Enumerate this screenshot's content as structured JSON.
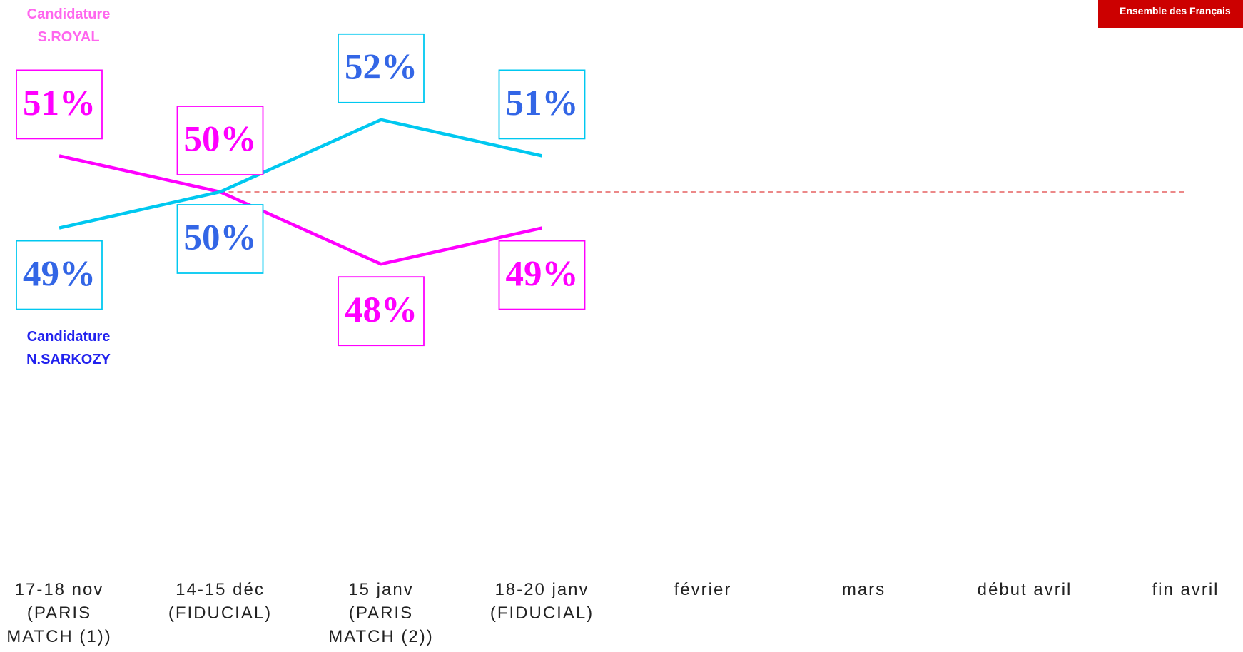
{
  "chart_data": {
    "type": "line",
    "badge": "Ensemble des Français",
    "categories": [
      "17-18 nov (PARIS MATCH (1))",
      "14-15 déc (FIDUCIAL)",
      "15 janv (PARIS MATCH (2))",
      "18-20 janv (FIDUCIAL)",
      "février",
      "mars",
      "début avril",
      "fin avril"
    ],
    "series": [
      {
        "name": "Candidature S.ROYAL",
        "color": "#ff00ff",
        "label_color": "#ff00ff",
        "legend_color": "#ff66ee",
        "values": [
          51,
          50,
          48,
          49,
          null,
          null,
          null,
          null
        ],
        "value_labels": [
          "51%",
          "50%",
          "48%",
          "49%",
          null,
          null,
          null,
          null
        ]
      },
      {
        "name": "Candidature N.SARKOZY",
        "color": "#00c8f0",
        "label_color": "#3366e6",
        "legend_color": "#2222ee",
        "values": [
          49,
          50,
          52,
          51,
          null,
          null,
          null,
          null
        ],
        "value_labels": [
          "49%",
          "50%",
          "52%",
          "51%",
          null,
          null,
          null,
          null
        ]
      }
    ],
    "ylim": [
      45,
      55
    ],
    "reference_line": 50,
    "reference_color": "#e04040"
  }
}
